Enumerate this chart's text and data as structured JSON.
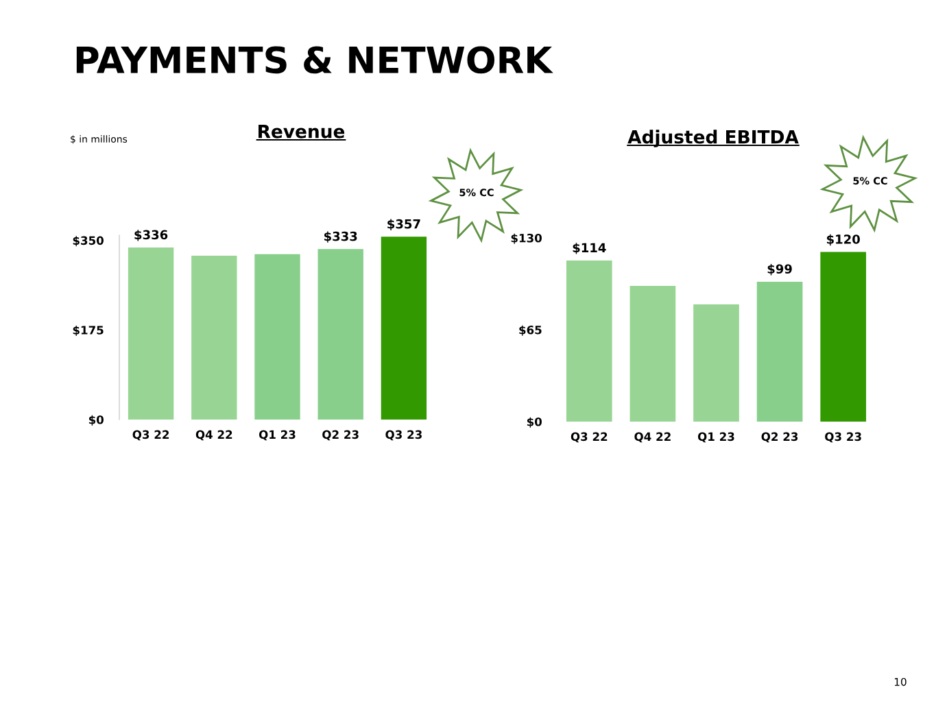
{
  "chart_data": [
    {
      "type": "bar",
      "title": "Revenue",
      "categories": [
        "Q3 22",
        "Q4 22",
        "Q1 23",
        "Q2 23",
        "Q3 23"
      ],
      "values": [
        336,
        320,
        323,
        333,
        357
      ],
      "colors": [
        "#98d594",
        "#98d594",
        "#88cf8c",
        "#88cf8c",
        "#339900"
      ],
      "value_labels": [
        "$336",
        null,
        null,
        "$333",
        "$357"
      ],
      "ylim": [
        0,
        360
      ],
      "yticks": [
        {
          "value": 0,
          "label": "$0"
        },
        {
          "value": 175,
          "label": "$175"
        },
        {
          "value": 350,
          "label": "$350"
        }
      ],
      "annotations": [
        "PAYMENTS & NETWORK",
        "$ in millions",
        "5% CC"
      ]
    },
    {
      "type": "bar",
      "title": "Adjusted EBITDA",
      "categories": [
        "Q3 22",
        "Q4 22",
        "Q1 23",
        "Q2 23",
        "Q3 23"
      ],
      "values": [
        114,
        96,
        83,
        99,
        120
      ],
      "colors": [
        "#98d594",
        "#98d594",
        "#98d594",
        "#88cf8c",
        "#339900"
      ],
      "value_labels": [
        "$114",
        null,
        null,
        "$99",
        "$120"
      ],
      "ylim": [
        0,
        130
      ],
      "yticks": [
        {
          "value": 0,
          "label": "$0"
        },
        {
          "value": 65,
          "label": "$65"
        },
        {
          "value": 130,
          "label": "$130"
        }
      ],
      "annotations": [
        "5% CC",
        "10"
      ]
    }
  ]
}
